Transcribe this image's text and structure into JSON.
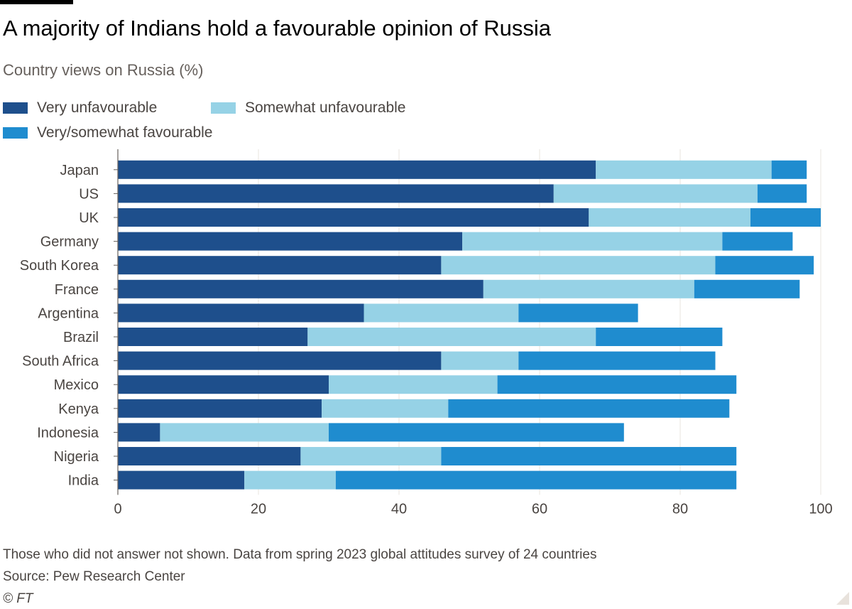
{
  "header": {
    "title": "A majority of Indians hold a favourable opinion of Russia",
    "subtitle": "Country views on Russia (%)"
  },
  "colors": {
    "very_unfavourable": "#1e4f8c",
    "somewhat_unfavourable": "#96d2e6",
    "favourable": "#1f8ccf",
    "grid": "#e9e4df",
    "axis": "#66605c"
  },
  "legend": [
    {
      "label": "Very unfavourable"
    },
    {
      "label": "Somewhat unfavourable"
    },
    {
      "label": "Very/somewhat favourable"
    }
  ],
  "chart_data": {
    "type": "bar",
    "orientation": "horizontal",
    "stacked": true,
    "categories": [
      "Japan",
      "US",
      "UK",
      "Germany",
      "South Korea",
      "France",
      "Argentina",
      "Brazil",
      "South Africa",
      "Mexico",
      "Kenya",
      "Indonesia",
      "Nigeria",
      "India"
    ],
    "series": [
      {
        "name": "Very unfavourable",
        "values": [
          68,
          62,
          67,
          49,
          46,
          52,
          35,
          27,
          46,
          30,
          29,
          6,
          26,
          18
        ]
      },
      {
        "name": "Somewhat unfavourable",
        "values": [
          25,
          29,
          23,
          37,
          39,
          30,
          22,
          41,
          11,
          24,
          18,
          24,
          20,
          13
        ]
      },
      {
        "name": "Very/somewhat favourable",
        "values": [
          5,
          7,
          10,
          10,
          14,
          15,
          17,
          18,
          28,
          34,
          40,
          42,
          42,
          57
        ]
      }
    ],
    "xlim": [
      0,
      100
    ],
    "xticks": [
      0,
      20,
      40,
      60,
      80,
      100
    ],
    "grid": true,
    "legend_position": "top-left"
  },
  "footer": {
    "note": "Those who did not answer not shown. Data from spring 2023 global attitudes survey of 24 countries",
    "source": "Source: Pew Research Center",
    "copyright": "© FT"
  }
}
